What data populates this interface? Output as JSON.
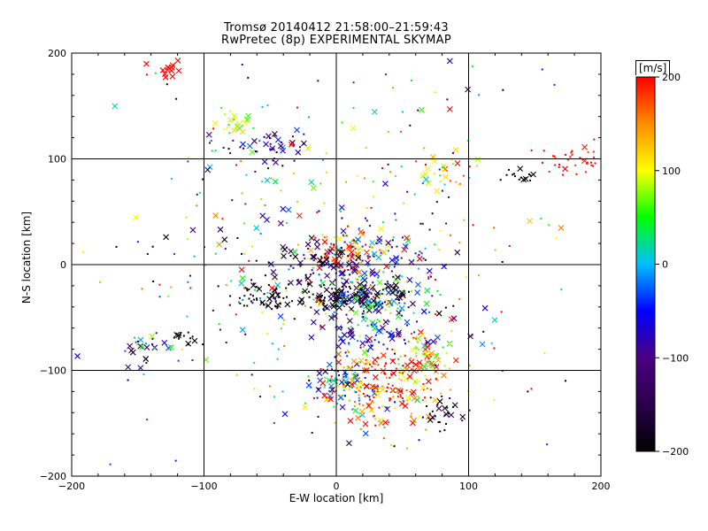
{
  "title_line1": "Tromsø 20140412 21:58:00–21:59:43",
  "title_line2": "RwPretec (8p) EXPERIMENTAL SKYMAP",
  "chart_data": {
    "type": "scatter",
    "xlabel": "E-W location [km]",
    "ylabel": "N-S location [km]",
    "xlim": [
      -200,
      200
    ],
    "ylim": [
      -200,
      200
    ],
    "xticks": [
      "−200",
      "−100",
      "0",
      "100",
      "200"
    ],
    "yticks": [
      "−200",
      "−100",
      "0",
      "100",
      "200"
    ],
    "grid": true,
    "colorbar": {
      "label": "[m/s]",
      "range": [
        -200,
        200
      ],
      "ticks": [
        "200",
        "100",
        "0",
        "−100",
        "−200"
      ],
      "colors": [
        "#000000",
        "#2a004a",
        "#4b0082",
        "#0000ff",
        "#00bfff",
        "#00ff00",
        "#ffff00",
        "#ff8c00",
        "#ff0000"
      ]
    },
    "marker_types": [
      "dot",
      "cross"
    ],
    "clusters": [
      {
        "x": 5,
        "y": -115,
        "sx": 12,
        "sy": 10,
        "n": 80,
        "v": -30,
        "vs": 60,
        "cross": 0.3
      },
      {
        "x": 40,
        "y": -110,
        "sx": 25,
        "sy": 22,
        "n": 220,
        "v": 170,
        "vs": 60,
        "cross": 0.35
      },
      {
        "x": 70,
        "y": -85,
        "sx": 14,
        "sy": 14,
        "n": 60,
        "v": 120,
        "vs": 80,
        "cross": 0.35
      },
      {
        "x": 80,
        "y": -140,
        "sx": 8,
        "sy": 8,
        "n": 30,
        "v": -180,
        "vs": 40,
        "cross": 0.4
      },
      {
        "x": 15,
        "y": -30,
        "sx": 22,
        "sy": 8,
        "n": 160,
        "v": -180,
        "vs": 40,
        "cross": 0.5
      },
      {
        "x": 20,
        "y": -35,
        "sx": 25,
        "sy": 12,
        "n": 100,
        "v": 0,
        "vs": 70,
        "cross": 0.3
      },
      {
        "x": 10,
        "y": 10,
        "sx": 15,
        "sy": 12,
        "n": 90,
        "v": 150,
        "vs": 60,
        "cross": 0.4
      },
      {
        "x": 30,
        "y": 5,
        "sx": 25,
        "sy": 15,
        "n": 80,
        "v": -60,
        "vs": 40,
        "cross": 0.4
      },
      {
        "x": -10,
        "y": 5,
        "sx": 20,
        "sy": 10,
        "n": 60,
        "v": -150,
        "vs": 60,
        "cross": 0.5
      },
      {
        "x": -55,
        "y": -30,
        "sx": 15,
        "sy": 8,
        "n": 60,
        "v": -200,
        "vs": 20,
        "cross": 0.3
      },
      {
        "x": 20,
        "y": -70,
        "sx": 18,
        "sy": 8,
        "n": 50,
        "v": -50,
        "vs": 40,
        "cross": 0.4
      },
      {
        "x": -130,
        "y": 185,
        "sx": 8,
        "sy": 5,
        "n": 14,
        "v": 200,
        "vs": 5,
        "cross": 0.8
      },
      {
        "x": -75,
        "y": 135,
        "sx": 8,
        "sy": 6,
        "n": 25,
        "v": 90,
        "vs": 30,
        "cross": 0.5
      },
      {
        "x": -55,
        "y": 110,
        "sx": 20,
        "sy": 8,
        "n": 40,
        "v": -120,
        "vs": 80,
        "cross": 0.3
      },
      {
        "x": 180,
        "y": 100,
        "sx": 14,
        "sy": 8,
        "n": 40,
        "v": 200,
        "vs": 10,
        "cross": 0.2
      },
      {
        "x": 140,
        "y": 85,
        "sx": 8,
        "sy": 5,
        "n": 15,
        "v": -200,
        "vs": 10,
        "cross": 0.3
      },
      {
        "x": 80,
        "y": 85,
        "sx": 12,
        "sy": 8,
        "n": 25,
        "v": 120,
        "vs": 30,
        "cross": 0.4
      },
      {
        "x": -140,
        "y": -80,
        "sx": 15,
        "sy": 8,
        "n": 30,
        "v": -100,
        "vs": 90,
        "cross": 0.4
      },
      {
        "x": -115,
        "y": -70,
        "sx": 6,
        "sy": 5,
        "n": 12,
        "v": -200,
        "vs": 10,
        "cross": 0.5
      },
      {
        "x": 0,
        "y": 0,
        "sx": 80,
        "sy": 90,
        "n": 400,
        "v": 0,
        "vs": 140,
        "cross": 0.25
      }
    ]
  }
}
